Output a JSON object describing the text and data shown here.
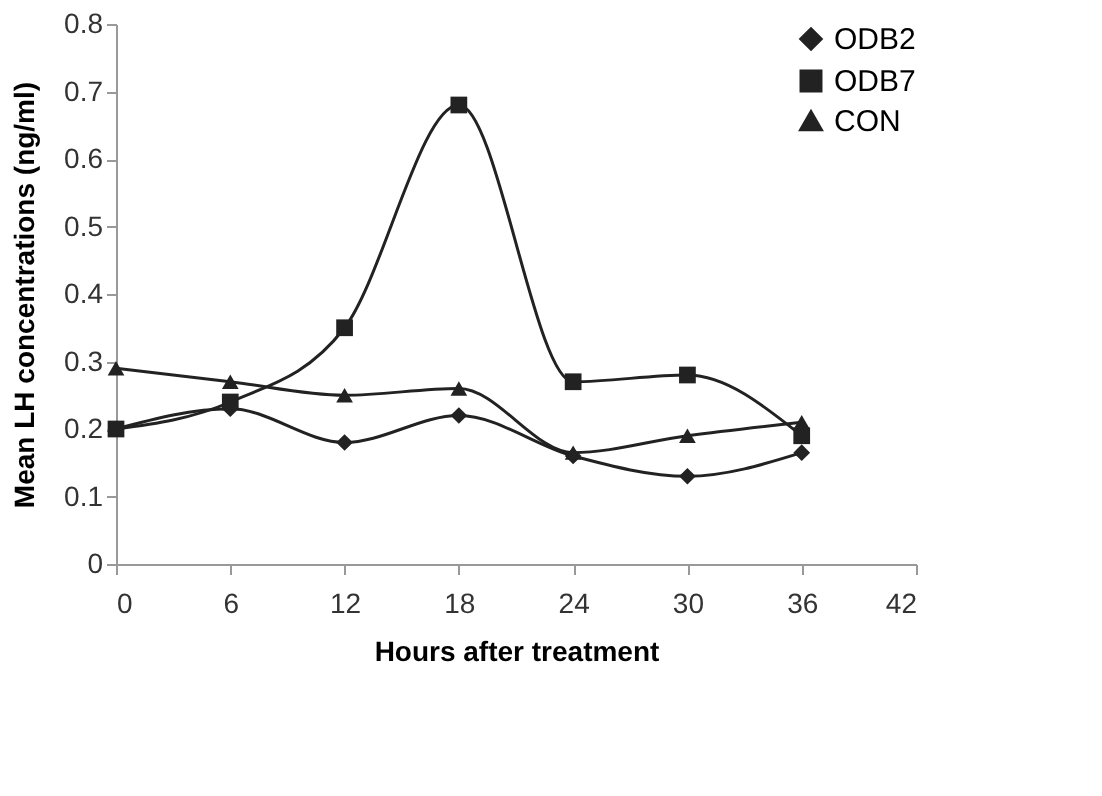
{
  "chart_data": {
    "type": "line",
    "xlabel": "Hours after treatment",
    "ylabel": "Mean LH concentrations (ng/ml)",
    "x": [
      0,
      6,
      12,
      18,
      24,
      30,
      36
    ],
    "series": [
      {
        "name": "ODB2",
        "color": "#222222",
        "marker": "diamond",
        "values": [
          0.2,
          0.23,
          0.18,
          0.22,
          0.16,
          0.13,
          0.165
        ]
      },
      {
        "name": "ODB7",
        "color": "#222222",
        "marker": "square",
        "values": [
          0.2,
          0.24,
          0.35,
          0.68,
          0.27,
          0.28,
          0.19
        ]
      },
      {
        "name": "CON",
        "color": "#222222",
        "marker": "triangle",
        "values": [
          0.29,
          0.27,
          0.25,
          0.26,
          0.165,
          0.19,
          0.21
        ]
      }
    ],
    "xlim": [
      0,
      42
    ],
    "xticks": [
      0,
      6,
      12,
      18,
      24,
      30,
      36,
      42
    ],
    "ylim": [
      0,
      0.8
    ],
    "yticks": [
      0,
      0.1,
      0.2,
      0.3,
      0.4,
      0.5,
      0.6,
      0.7,
      0.8
    ],
    "grid": false,
    "legend": "top right",
    "line_style": "solid"
  }
}
